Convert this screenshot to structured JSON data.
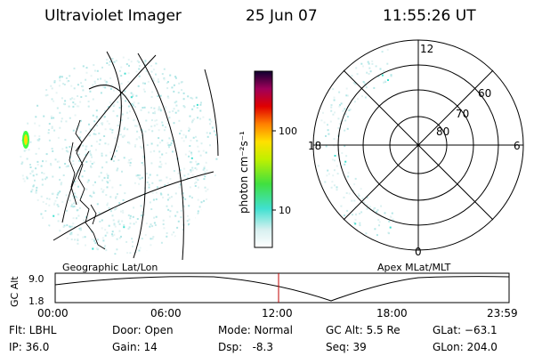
{
  "header": {
    "instrument": "Ultraviolet Imager",
    "date": "25 Jun 07",
    "time": "11:55:26 UT"
  },
  "left_panel": {
    "label": "Geographic Lat/Lon"
  },
  "right_panel": {
    "label": "Apex MLat/MLT",
    "mlt_labels": {
      "top": "12",
      "left": "18",
      "right": "6",
      "bottom": "0"
    },
    "lat_labels": [
      "60",
      "70",
      "80"
    ]
  },
  "colorbar": {
    "unit_label": "photon cm⁻²s⁻¹",
    "ticks": [
      "100",
      "10"
    ]
  },
  "timeline": {
    "y_axis_label": "GC Alt",
    "y_ticks": [
      "9.0",
      "1.8"
    ],
    "x_ticks": [
      "00:00",
      "06:00",
      "12:00",
      "18:00",
      "23:59"
    ],
    "current_marker_color": "#c00000"
  },
  "info": {
    "flt": "Flt: LBHL",
    "ip": "IP: 36.0",
    "door": "Door: Open",
    "gain": "Gain: 14",
    "mode": "Mode: Normal",
    "dsp": "Dsp:   -8.3",
    "gc_alt": "GC Alt: 5.5 Re",
    "seq": "Seq: 39",
    "glat": "GLat: −63.1",
    "glon": "GLon: 204.0"
  }
}
